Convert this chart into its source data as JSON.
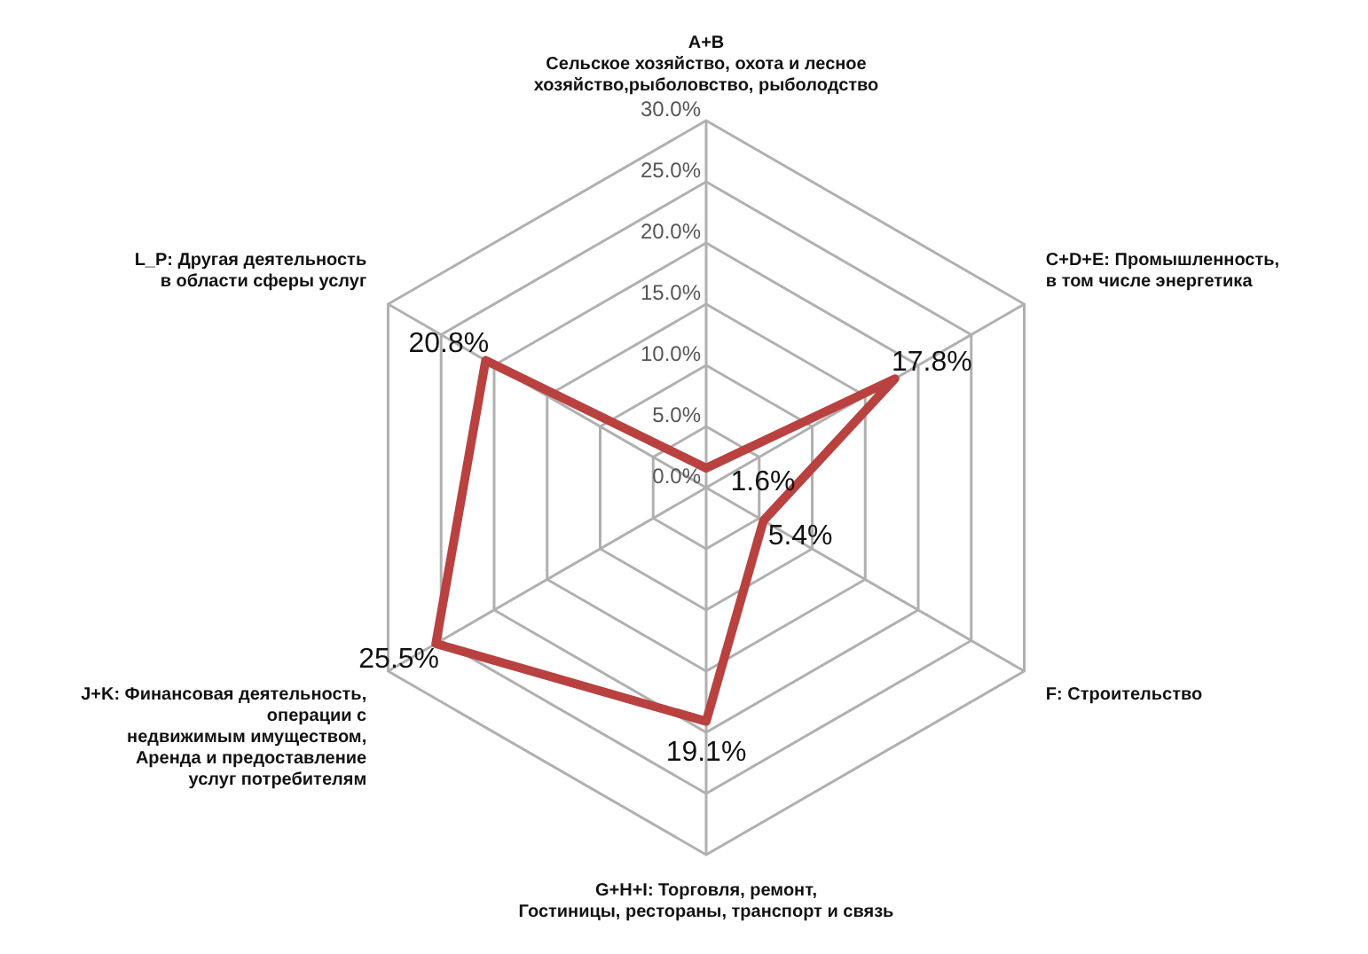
{
  "chart_data": {
    "type": "radar",
    "categories": [
      "A+B\nСельское хозяйство, охота и лесное\nхозяйство,рыболовство, рыболодство",
      "C+D+E: Промышленность,\nв том числе энергетика",
      "F: Строительство",
      "G+H+I: Торговля, ремонт,\nГостиницы, рестораны, транспорт и связь",
      "J+K: Финансовая деятельность,\nоперации с\nнедвижимым имуществом,\nАренда и предоставление\nуслуг потребителям",
      "L_P: Другая деятельность\nв области сферы услуг"
    ],
    "series": [
      {
        "color": "#b9413f",
        "values": [
          1.6,
          17.8,
          5.4,
          19.1,
          25.5,
          20.8
        ],
        "value_labels": [
          "1.6%",
          "17.8%",
          "5.4%",
          "19.1%",
          "25.5%",
          "20.8%"
        ]
      }
    ],
    "ylim": [
      0,
      30
    ],
    "yticks": [
      {
        "value": 0,
        "label": "0.0%"
      },
      {
        "value": 5,
        "label": "5.0%"
      },
      {
        "value": 10,
        "label": "10.0%"
      },
      {
        "value": 15,
        "label": "15.0%"
      },
      {
        "value": 20,
        "label": "20.0%"
      },
      {
        "value": 25,
        "label": "25.0%"
      },
      {
        "value": 30,
        "label": "30.0%"
      }
    ],
    "grid": true,
    "legend": false,
    "marker": "none"
  }
}
